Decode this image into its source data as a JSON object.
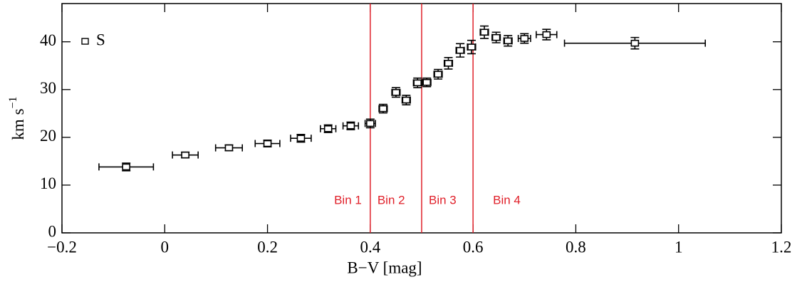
{
  "chart_data": {
    "type": "scatter",
    "xlabel": "B−V [mag]",
    "ylabel": "km s",
    "ylabel_superscript": "−1",
    "xlim": [
      -0.2,
      1.2
    ],
    "ylim": [
      0,
      48
    ],
    "xticks": [
      {
        "value": -0.2,
        "label": "−0.2"
      },
      0,
      0.2,
      0.4,
      0.6,
      0.8,
      1,
      1.2
    ],
    "yticks": [
      0,
      10,
      20,
      30,
      40
    ],
    "series": [
      {
        "name": "S",
        "color": "#000000",
        "x": [
          -0.075,
          0.04,
          0.125,
          0.2,
          0.265,
          0.318,
          0.362,
          0.4,
          0.425,
          0.45,
          0.47,
          0.492,
          0.51,
          0.532,
          0.552,
          0.575,
          0.597,
          0.622,
          0.645,
          0.668,
          0.7,
          0.743,
          0.915
        ],
        "values": [
          13.8,
          16.3,
          17.8,
          18.7,
          19.8,
          21.8,
          22.4,
          22.9,
          26,
          29.4,
          27.8,
          31.4,
          31.5,
          33.2,
          35.5,
          38.2,
          38.9,
          42,
          40.9,
          40.2,
          40.7,
          41.5,
          39.7
        ],
        "xerr": [
          0.053,
          0.025,
          0.026,
          0.024,
          0.02,
          0.015,
          0.015,
          0.01,
          0.008,
          0.008,
          0.008,
          0.008,
          0.008,
          0.008,
          0.008,
          0.008,
          0.008,
          0.008,
          0.008,
          0.008,
          0.012,
          0.02,
          0.137
        ],
        "yerr": [
          0.8,
          0.6,
          0.6,
          0.7,
          0.8,
          0.8,
          0.8,
          0.9,
          0.9,
          1.0,
          1.0,
          1.0,
          0.9,
          1.0,
          1.2,
          1.4,
          1.4,
          1.3,
          1.1,
          1.1,
          1.0,
          1.1,
          1.2
        ]
      }
    ],
    "dividers": [
      0.4,
      0.5,
      0.6
    ],
    "divider_color": "#e0202a",
    "bin_labels": [
      "Bin 1",
      "Bin 2",
      "Bin 3",
      "Bin 4"
    ],
    "legend": "upper left"
  }
}
